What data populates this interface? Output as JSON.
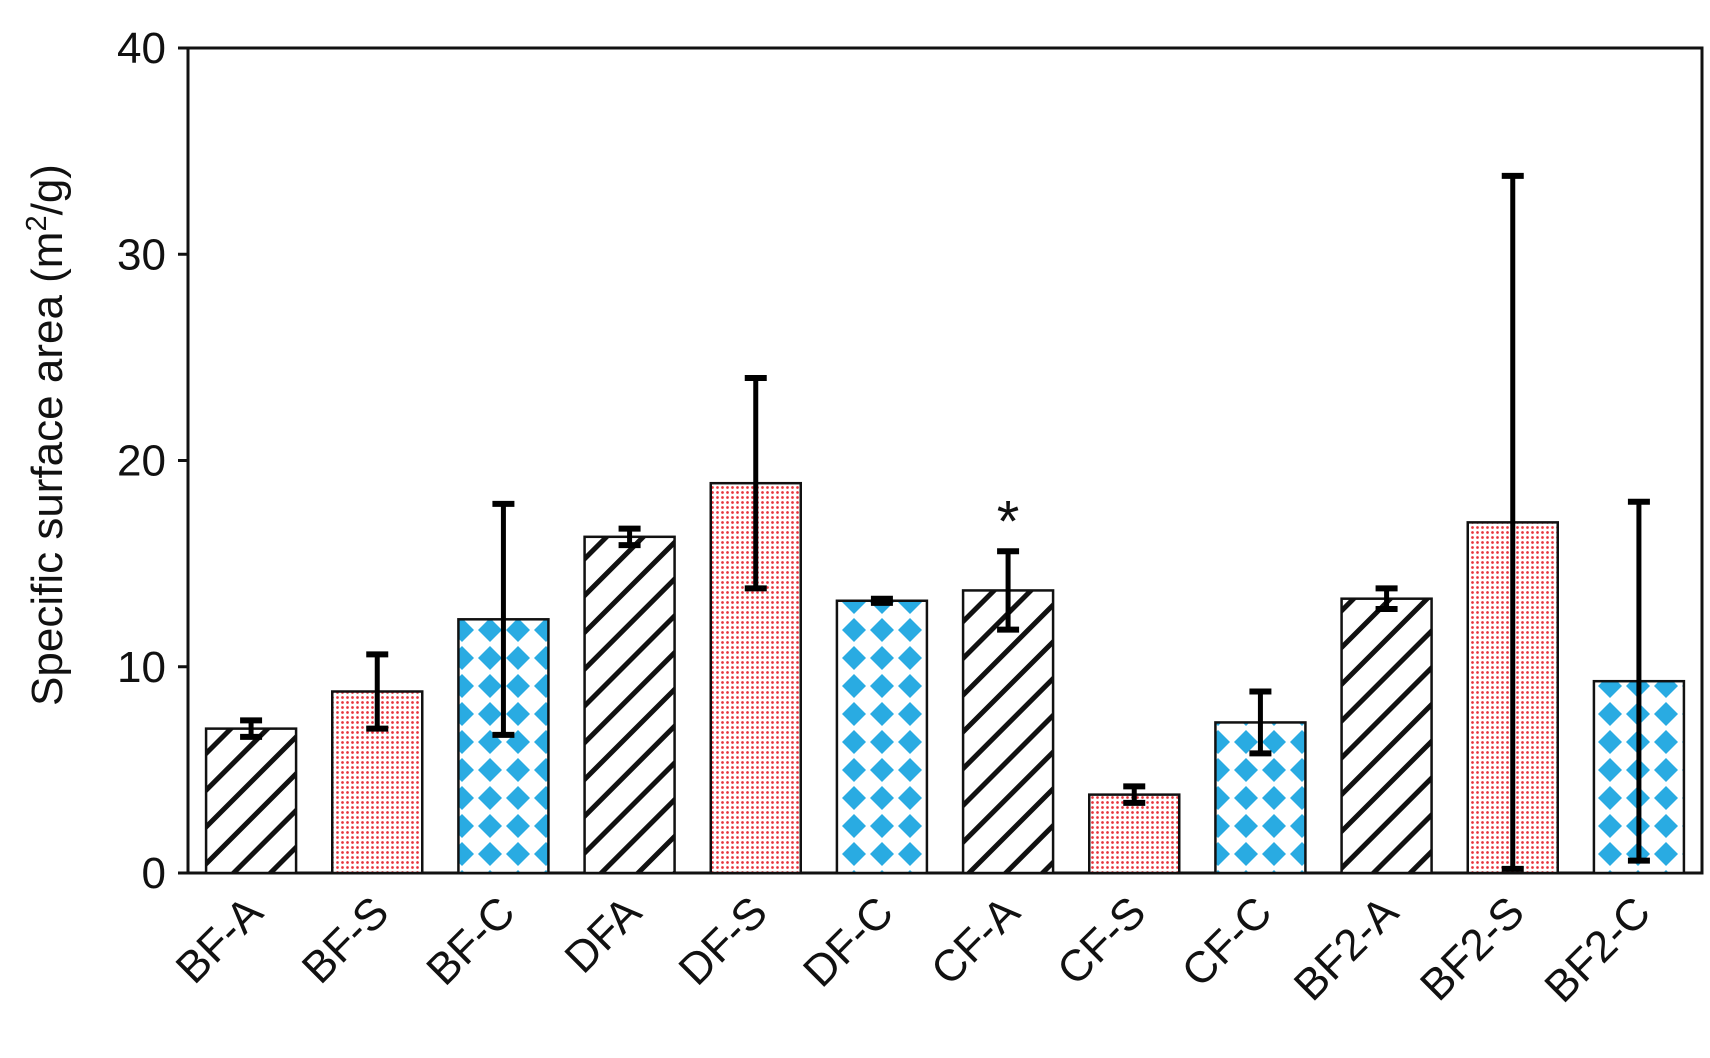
{
  "chart_data": {
    "type": "bar",
    "title": "",
    "xlabel": "",
    "ylabel": "Specific surface area (m²/g)",
    "ylabel_parts": {
      "prefix": "Specific surface area (m",
      "superscript": "2",
      "suffix": "/g)"
    },
    "ylim": [
      0,
      40
    ],
    "yticks": [
      0,
      10,
      20,
      30,
      40
    ],
    "grid": false,
    "categories": [
      "BF-A",
      "BF-S",
      "BF-C",
      "DFA",
      "DF-S",
      "DF-C",
      "CF-A",
      "CF-S",
      "CF-C",
      "BF2-A",
      "BF2-S",
      "BF2-C"
    ],
    "values": [
      7.0,
      8.8,
      12.3,
      16.3,
      18.9,
      13.2,
      13.7,
      3.8,
      7.3,
      13.3,
      17.0,
      9.3
    ],
    "error": [
      0.4,
      1.8,
      5.6,
      0.4,
      5.1,
      0.1,
      1.9,
      0.4,
      1.5,
      0.5,
      16.8,
      8.7
    ],
    "patterns": [
      "hatch",
      "dots",
      "diamond",
      "hatch",
      "dots",
      "diamond",
      "hatch",
      "dots",
      "diamond",
      "hatch",
      "dots",
      "diamond"
    ],
    "annotations": [
      {
        "category": "CF-A",
        "text": "*"
      }
    ],
    "colors": {
      "hatch_stroke": "#111111",
      "dots_fill": "#e8343c",
      "diamond_fill": "#29abe2",
      "bar_outline": "#111111",
      "error_bar": "#000000"
    }
  }
}
